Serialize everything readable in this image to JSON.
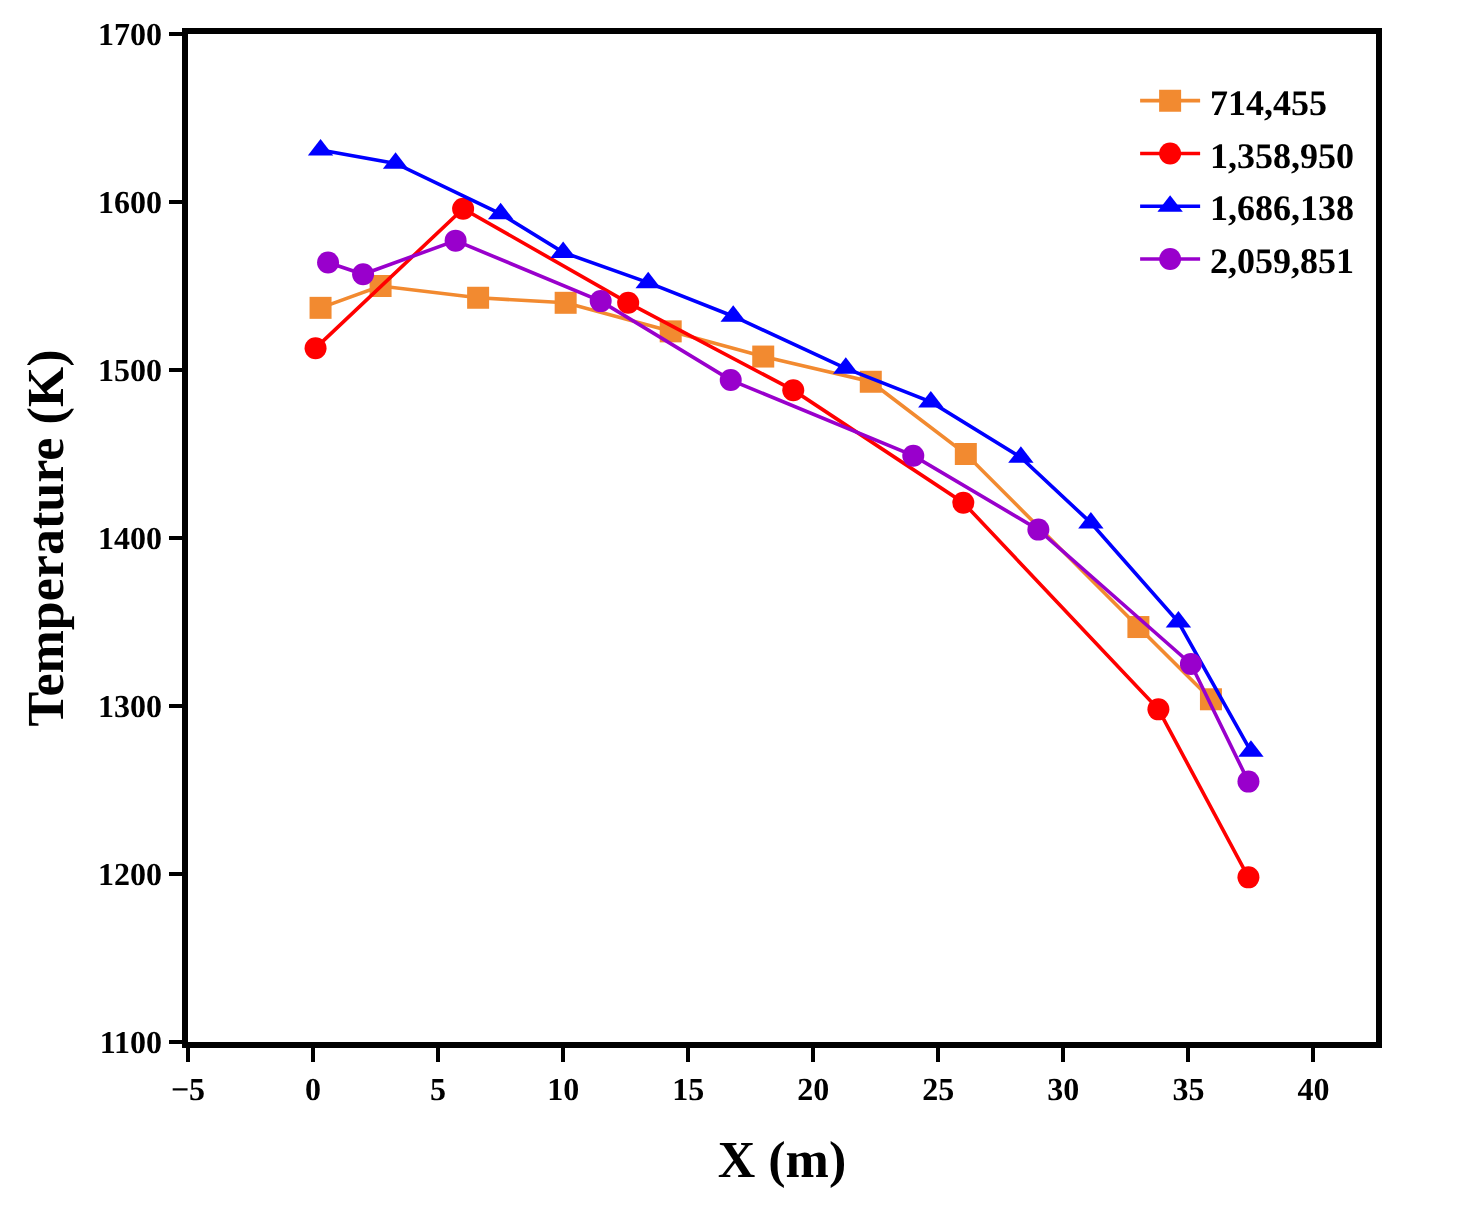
{
  "chart_data": {
    "type": "line",
    "xlabel": "X (m)",
    "ylabel": "Temperature (K)",
    "xlim": [
      -5,
      42.5
    ],
    "xticks": [
      -5,
      0,
      5,
      10,
      15,
      20,
      25,
      30,
      35,
      40
    ],
    "ylim": [
      1100,
      1700
    ],
    "yticks": [
      1100,
      1200,
      1300,
      1400,
      1500,
      1600,
      1700
    ],
    "legend": "top right",
    "line_style": "solid",
    "series": [
      {
        "name": "714,455",
        "color": "#f28a30",
        "marker": "square",
        "x": [
          0.3,
          2.7,
          6.6,
          10.1,
          14.3,
          18.0,
          22.3,
          26.1,
          33.0,
          35.9
        ],
        "values": [
          1537,
          1550,
          1543,
          1540,
          1523,
          1508,
          1493,
          1450,
          1347,
          1304
        ]
      },
      {
        "name": "1,358,950",
        "color": "#ff0000",
        "marker": "circle",
        "x": [
          0.1,
          6.0,
          12.6,
          19.2,
          26.0,
          33.8,
          37.4
        ],
        "values": [
          1513,
          1596,
          1540,
          1488,
          1421,
          1298,
          1198
        ]
      },
      {
        "name": "1,686,138",
        "color": "#0000ff",
        "marker": "triangle",
        "x": [
          0.3,
          3.3,
          7.5,
          10.0,
          13.4,
          16.8,
          21.3,
          24.7,
          28.3,
          31.1,
          34.6,
          37.5
        ],
        "values": [
          1631,
          1623,
          1593,
          1570,
          1552,
          1532,
          1501,
          1481,
          1448,
          1409,
          1350,
          1273
        ]
      },
      {
        "name": "2,059,851",
        "color": "#9900cc",
        "marker": "circle",
        "x": [
          0.6,
          2.0,
          5.7,
          11.5,
          16.7,
          24.0,
          29.0,
          35.1,
          37.4
        ],
        "values": [
          1564,
          1557,
          1577,
          1541,
          1494,
          1449,
          1405,
          1325,
          1255
        ]
      }
    ]
  }
}
